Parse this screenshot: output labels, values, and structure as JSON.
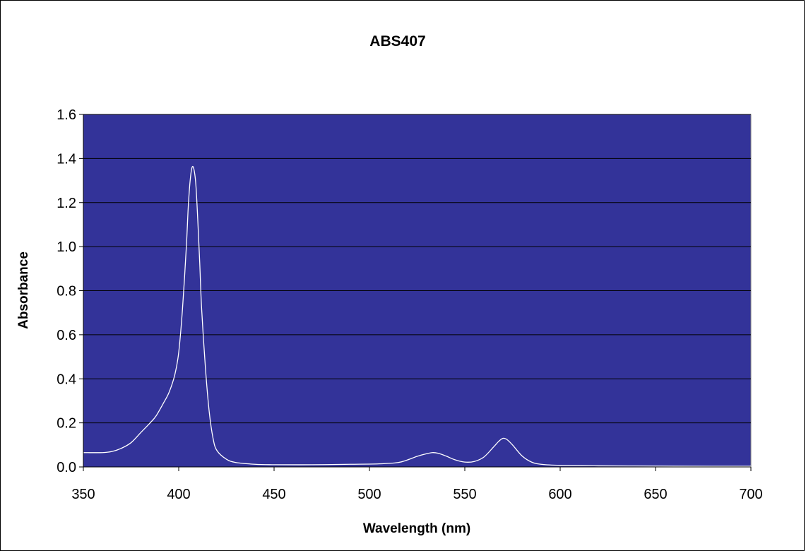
{
  "chart_data": {
    "type": "line",
    "title": "ABS407",
    "xlabel": "Wavelength (nm)",
    "ylabel": "Absorbance",
    "xlim": [
      350,
      700
    ],
    "ylim": [
      0,
      1.6
    ],
    "x_ticks": [
      "350",
      "400",
      "450",
      "500",
      "550",
      "600",
      "650",
      "700"
    ],
    "y_ticks": [
      "0.0",
      "0.2",
      "0.4",
      "0.6",
      "0.8",
      "1.0",
      "1.2",
      "1.4",
      "1.6"
    ],
    "grid": true,
    "legend": "none",
    "colors": {
      "plot_bg": "#333399",
      "line": "#ffffff",
      "grid": "#000000"
    },
    "series": [
      {
        "x": [
          350,
          360,
          365,
          370,
          375,
          380,
          385,
          388,
          392,
          395,
          398,
          400,
          402,
          404,
          405,
          406,
          407,
          408,
          409,
          410,
          411,
          412,
          414,
          416,
          418,
          420,
          425,
          430,
          440,
          450,
          470,
          490,
          505,
          515,
          520,
          525,
          530,
          533,
          536,
          540,
          545,
          550,
          555,
          560,
          565,
          568,
          570,
          572,
          575,
          580,
          585,
          590,
          600,
          620,
          650,
          680,
          700
        ],
        "y": [
          0.065,
          0.065,
          0.07,
          0.085,
          0.11,
          0.155,
          0.2,
          0.23,
          0.29,
          0.34,
          0.42,
          0.52,
          0.72,
          1.0,
          1.18,
          1.3,
          1.36,
          1.35,
          1.28,
          1.12,
          0.93,
          0.72,
          0.45,
          0.25,
          0.13,
          0.075,
          0.035,
          0.02,
          0.012,
          0.01,
          0.01,
          0.012,
          0.014,
          0.02,
          0.032,
          0.048,
          0.06,
          0.065,
          0.062,
          0.05,
          0.032,
          0.022,
          0.025,
          0.045,
          0.09,
          0.118,
          0.13,
          0.125,
          0.1,
          0.05,
          0.022,
          0.012,
          0.007,
          0.005,
          0.004,
          0.003,
          0.003
        ]
      }
    ]
  }
}
